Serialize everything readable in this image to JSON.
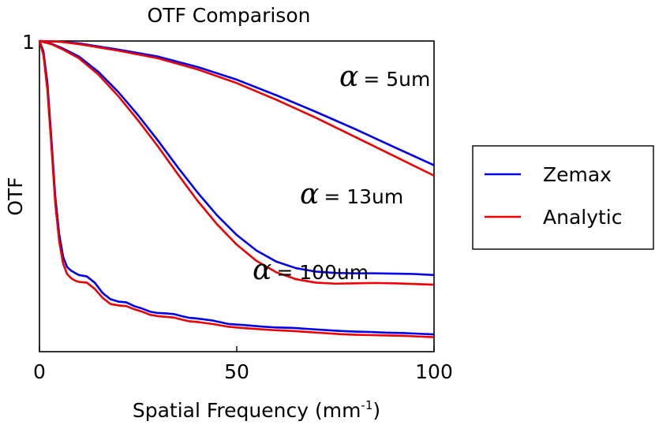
{
  "chart_data": {
    "type": "line",
    "title": "OTF Comparison",
    "xlabel": "Spatial Frequency (mm",
    "xlabel_sup": "-1",
    "xlabel_suffix": ")",
    "ylabel": "OTF",
    "xlim": [
      0,
      100
    ],
    "ylim": [
      0.1,
      1.0
    ],
    "x_ticks": [
      {
        "value": 0,
        "label": "0"
      },
      {
        "value": 50,
        "label": "50"
      },
      {
        "value": 100,
        "label": "100"
      }
    ],
    "y_ticks": [
      {
        "value": 1,
        "label": "1"
      }
    ],
    "grid": false,
    "legend": {
      "position": "right",
      "entries": [
        {
          "name": "Zemax",
          "color": "#0000ee"
        },
        {
          "name": "Analytic",
          "color": "#ee0000"
        }
      ]
    },
    "annotations": [
      {
        "symbol": "α",
        "text": "= 5um",
        "x": 76,
        "y": 0.87
      },
      {
        "symbol": "α",
        "text": "= 13um",
        "x": 66,
        "y": 0.53
      },
      {
        "symbol": "α",
        "text": "= 100um",
        "x": 54,
        "y": 0.31
      }
    ],
    "groups": [
      {
        "label": "α = 5um",
        "series": [
          {
            "name": "Zemax",
            "color": "#0000ee",
            "x": [
              0,
              5,
              10,
              20,
              30,
              40,
              50,
              60,
              70,
              80,
              90,
              100
            ],
            "y": [
              1.0,
              0.998,
              0.993,
              0.975,
              0.955,
              0.925,
              0.888,
              0.843,
              0.795,
              0.745,
              0.692,
              0.64
            ]
          },
          {
            "name": "Analytic",
            "color": "#ee0000",
            "x": [
              0,
              5,
              10,
              20,
              30,
              40,
              50,
              60,
              70,
              80,
              90,
              100
            ],
            "y": [
              1.0,
              0.998,
              0.991,
              0.972,
              0.95,
              0.918,
              0.878,
              0.83,
              0.778,
              0.722,
              0.666,
              0.61
            ]
          }
        ]
      },
      {
        "label": "α = 13um",
        "series": [
          {
            "name": "Zemax",
            "color": "#0000ee",
            "x": [
              0,
              3,
              6,
              10,
              15,
              20,
              25,
              30,
              35,
              40,
              45,
              50,
              55,
              60,
              65,
              70,
              75,
              80,
              85,
              90,
              95,
              100
            ],
            "y": [
              1.0,
              0.992,
              0.978,
              0.955,
              0.91,
              0.852,
              0.785,
              0.712,
              0.635,
              0.562,
              0.495,
              0.438,
              0.393,
              0.361,
              0.342,
              0.332,
              0.328,
              0.327,
              0.327,
              0.326,
              0.325,
              0.322
            ]
          },
          {
            "name": "Analytic",
            "color": "#ee0000",
            "x": [
              0,
              3,
              6,
              10,
              15,
              20,
              25,
              30,
              35,
              40,
              45,
              50,
              55,
              60,
              65,
              70,
              75,
              80,
              85,
              90,
              95,
              100
            ],
            "y": [
              1.0,
              0.991,
              0.975,
              0.95,
              0.902,
              0.84,
              0.77,
              0.695,
              0.615,
              0.538,
              0.469,
              0.41,
              0.363,
              0.33,
              0.31,
              0.3,
              0.297,
              0.298,
              0.299,
              0.298,
              0.296,
              0.294
            ]
          }
        ]
      },
      {
        "label": "α = 100um",
        "series": [
          {
            "name": "Zemax",
            "color": "#0000ee",
            "x": [
              0,
              1,
              2,
              3,
              4,
              5,
              6,
              7,
              8,
              9,
              10,
              12,
              14,
              16,
              18,
              20,
              22,
              24,
              26,
              28,
              30,
              32,
              34,
              36,
              38,
              40,
              44,
              48,
              52,
              56,
              60,
              64,
              68,
              72,
              76,
              80,
              84,
              88,
              92,
              96,
              100
            ],
            "y": [
              1.0,
              0.97,
              0.88,
              0.72,
              0.55,
              0.44,
              0.375,
              0.345,
              0.335,
              0.328,
              0.322,
              0.318,
              0.3,
              0.27,
              0.252,
              0.245,
              0.243,
              0.232,
              0.225,
              0.216,
              0.212,
              0.211,
              0.209,
              0.203,
              0.198,
              0.196,
              0.19,
              0.18,
              0.177,
              0.173,
              0.17,
              0.169,
              0.166,
              0.163,
              0.16,
              0.158,
              0.157,
              0.155,
              0.154,
              0.152,
              0.15
            ]
          },
          {
            "name": "Analytic",
            "color": "#ee0000",
            "x": [
              0,
              1,
              2,
              3,
              4,
              5,
              6,
              7,
              8,
              9,
              10,
              12,
              14,
              16,
              18,
              20,
              22,
              24,
              26,
              28,
              30,
              32,
              34,
              36,
              38,
              40,
              44,
              48,
              52,
              56,
              60,
              64,
              68,
              72,
              76,
              80,
              84,
              88,
              92,
              96,
              100
            ],
            "y": [
              1.0,
              0.96,
              0.86,
              0.7,
              0.53,
              0.42,
              0.355,
              0.325,
              0.313,
              0.306,
              0.302,
              0.3,
              0.282,
              0.256,
              0.238,
              0.234,
              0.232,
              0.223,
              0.216,
              0.207,
              0.203,
              0.201,
              0.199,
              0.193,
              0.188,
              0.186,
              0.18,
              0.172,
              0.168,
              0.165,
              0.162,
              0.16,
              0.157,
              0.154,
              0.151,
              0.149,
              0.148,
              0.147,
              0.146,
              0.144,
              0.142
            ]
          }
        ]
      }
    ]
  }
}
